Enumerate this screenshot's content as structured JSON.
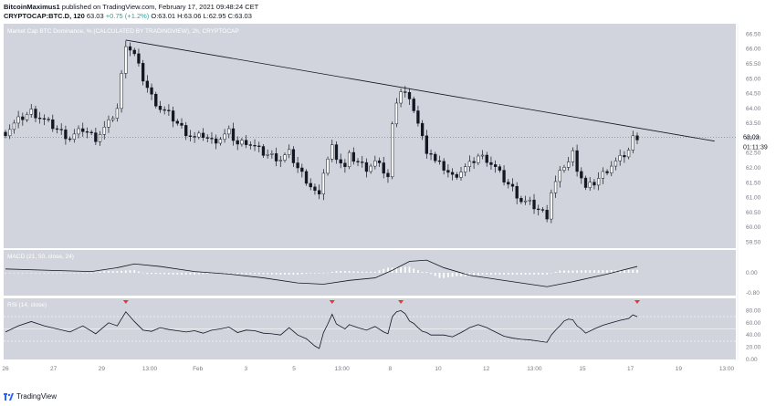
{
  "header": {
    "author": "BitcoinMaximus1",
    "published_text": "published on TradingView.com, February 17, 2021 09:48:24 CET",
    "symbol": "CRYPTOCAP:BTC.D, 120",
    "last": "63.03",
    "change": "+0.75 (+1.2%)",
    "ohlc": "O:63.01 H:63.06 L:62.95 C:63.03"
  },
  "footer": {
    "brand": "TradingView"
  },
  "chart_data": {
    "type": "candlestick",
    "title": "Market Cap BTC Dominance, % (CALCULATED BY TRADINGVIEW), 2h, CRYPTOCAP",
    "price_axis": {
      "range": [
        59.3,
        66.85
      ],
      "ticks": [
        "66.50",
        "66.00",
        "65.50",
        "65.00",
        "64.50",
        "64.00",
        "63.50",
        "63.00",
        "62.50",
        "62.00",
        "61.50",
        "61.00",
        "60.50",
        "60.00",
        "59.50"
      ]
    },
    "last_price": "63.03",
    "countdown": "01:11:39",
    "x_ticks": [
      "26",
      "27",
      "29",
      "13:00",
      "Feb",
      "3",
      "5",
      "13:00",
      "8",
      "10",
      "12",
      "13:00",
      "15",
      "17",
      "19",
      "13:00"
    ],
    "close_path": [
      [
        0,
        63.2
      ],
      [
        3,
        63.6
      ],
      [
        6,
        63.9
      ],
      [
        9,
        63.6
      ],
      [
        12,
        63.3
      ],
      [
        15,
        63.0
      ],
      [
        18,
        63.3
      ],
      [
        21,
        63.0
      ],
      [
        24,
        63.5
      ],
      [
        26,
        64.0
      ],
      [
        28,
        66.2
      ],
      [
        30,
        65.8
      ],
      [
        32,
        65.0
      ],
      [
        34,
        64.4
      ],
      [
        36,
        64.0
      ],
      [
        38,
        63.8
      ],
      [
        40,
        63.5
      ],
      [
        42,
        63.2
      ],
      [
        44,
        63.0
      ],
      [
        46,
        63.1
      ],
      [
        48,
        62.9
      ],
      [
        50,
        63.0
      ],
      [
        52,
        63.2
      ],
      [
        54,
        62.8
      ],
      [
        56,
        62.9
      ],
      [
        58,
        62.7
      ],
      [
        60,
        62.5
      ],
      [
        62,
        62.4
      ],
      [
        64,
        62.3
      ],
      [
        66,
        62.5
      ],
      [
        68,
        62.0
      ],
      [
        70,
        61.6
      ],
      [
        72,
        61.2
      ],
      [
        73,
        61.0
      ],
      [
        74,
        61.9
      ],
      [
        75,
        62.3
      ],
      [
        76,
        62.7
      ],
      [
        77,
        62.4
      ],
      [
        78,
        62.2
      ],
      [
        79,
        62.0
      ],
      [
        80,
        62.4
      ],
      [
        82,
        62.2
      ],
      [
        84,
        62.0
      ],
      [
        86,
        62.2
      ],
      [
        88,
        61.9
      ],
      [
        89,
        61.7
      ],
      [
        90,
        63.4
      ],
      [
        91,
        64.3
      ],
      [
        92,
        64.6
      ],
      [
        93,
        64.5
      ],
      [
        94,
        64.2
      ],
      [
        95,
        64.0
      ],
      [
        96,
        63.5
      ],
      [
        97,
        63.0
      ],
      [
        98,
        62.6
      ],
      [
        99,
        62.5
      ],
      [
        100,
        62.2
      ],
      [
        102,
        62.0
      ],
      [
        104,
        61.7
      ],
      [
        106,
        61.9
      ],
      [
        108,
        62.1
      ],
      [
        110,
        62.4
      ],
      [
        112,
        62.3
      ],
      [
        114,
        62.0
      ],
      [
        116,
        61.6
      ],
      [
        118,
        61.3
      ],
      [
        120,
        60.9
      ],
      [
        122,
        60.8
      ],
      [
        124,
        60.6
      ],
      [
        126,
        60.4
      ],
      [
        127,
        61.2
      ],
      [
        128,
        61.5
      ],
      [
        129,
        61.8
      ],
      [
        130,
        62.1
      ],
      [
        131,
        62.2
      ],
      [
        132,
        62.5
      ],
      [
        133,
        62.0
      ],
      [
        134,
        61.7
      ],
      [
        135,
        61.3
      ],
      [
        137,
        61.5
      ],
      [
        139,
        61.8
      ],
      [
        141,
        62.1
      ],
      [
        143,
        62.3
      ],
      [
        145,
        62.6
      ],
      [
        146,
        63.0
      ],
      [
        147,
        63.06
      ]
    ],
    "trendline": {
      "from": [
        28,
        66.3
      ],
      "to": [
        165,
        62.9
      ]
    },
    "macd": {
      "title": "MACD (21, 50, close, 24)",
      "range": [
        -0.9,
        0.9
      ],
      "ticks": [
        "0.00",
        "-0.80"
      ],
      "macd_line": [
        [
          0,
          0.15
        ],
        [
          10,
          0.1
        ],
        [
          20,
          0.05
        ],
        [
          26,
          0.2
        ],
        [
          30,
          0.35
        ],
        [
          36,
          0.25
        ],
        [
          44,
          0.05
        ],
        [
          52,
          -0.05
        ],
        [
          60,
          -0.2
        ],
        [
          68,
          -0.4
        ],
        [
          74,
          -0.45
        ],
        [
          80,
          -0.3
        ],
        [
          86,
          -0.2
        ],
        [
          90,
          0.1
        ],
        [
          94,
          0.45
        ],
        [
          98,
          0.5
        ],
        [
          102,
          0.2
        ],
        [
          108,
          -0.1
        ],
        [
          116,
          -0.3
        ],
        [
          124,
          -0.5
        ],
        [
          126,
          -0.55
        ],
        [
          132,
          -0.35
        ],
        [
          140,
          -0.05
        ],
        [
          147,
          0.25
        ]
      ]
    },
    "rsi": {
      "title": "RSI (14, close)",
      "range": [
        0,
        100
      ],
      "ticks": [
        "80.00",
        "60.00",
        "40.00",
        "20.00",
        "0.00"
      ],
      "levels": [
        70,
        50,
        30
      ],
      "line": [
        [
          0,
          45
        ],
        [
          3,
          55
        ],
        [
          6,
          62
        ],
        [
          9,
          55
        ],
        [
          12,
          50
        ],
        [
          15,
          45
        ],
        [
          18,
          55
        ],
        [
          21,
          42
        ],
        [
          24,
          60
        ],
        [
          26,
          55
        ],
        [
          28,
          78
        ],
        [
          30,
          62
        ],
        [
          32,
          48
        ],
        [
          34,
          46
        ],
        [
          36,
          52
        ],
        [
          38,
          49
        ],
        [
          40,
          47
        ],
        [
          42,
          45
        ],
        [
          44,
          47
        ],
        [
          46,
          43
        ],
        [
          48,
          48
        ],
        [
          50,
          50
        ],
        [
          52,
          53
        ],
        [
          54,
          44
        ],
        [
          56,
          48
        ],
        [
          58,
          47
        ],
        [
          60,
          43
        ],
        [
          62,
          42
        ],
        [
          64,
          40
        ],
        [
          66,
          52
        ],
        [
          68,
          40
        ],
        [
          70,
          34
        ],
        [
          72,
          22
        ],
        [
          73,
          18
        ],
        [
          74,
          44
        ],
        [
          75,
          58
        ],
        [
          76,
          74
        ],
        [
          77,
          58
        ],
        [
          78,
          54
        ],
        [
          79,
          50
        ],
        [
          80,
          57
        ],
        [
          82,
          52
        ],
        [
          84,
          48
        ],
        [
          86,
          54
        ],
        [
          88,
          45
        ],
        [
          89,
          42
        ],
        [
          90,
          70
        ],
        [
          91,
          78
        ],
        [
          92,
          80
        ],
        [
          93,
          75
        ],
        [
          94,
          63
        ],
        [
          95,
          59
        ],
        [
          96,
          52
        ],
        [
          97,
          46
        ],
        [
          98,
          44
        ],
        [
          99,
          40
        ],
        [
          100,
          40
        ],
        [
          102,
          40
        ],
        [
          104,
          37
        ],
        [
          106,
          44
        ],
        [
          108,
          52
        ],
        [
          110,
          57
        ],
        [
          112,
          52
        ],
        [
          114,
          45
        ],
        [
          116,
          38
        ],
        [
          118,
          35
        ],
        [
          120,
          33
        ],
        [
          122,
          32
        ],
        [
          124,
          30
        ],
        [
          126,
          28
        ],
        [
          127,
          40
        ],
        [
          128,
          48
        ],
        [
          129,
          55
        ],
        [
          130,
          63
        ],
        [
          131,
          66
        ],
        [
          132,
          65
        ],
        [
          133,
          55
        ],
        [
          134,
          50
        ],
        [
          135,
          43
        ],
        [
          137,
          50
        ],
        [
          139,
          56
        ],
        [
          141,
          60
        ],
        [
          143,
          64
        ],
        [
          145,
          67
        ],
        [
          146,
          73
        ],
        [
          147,
          70
        ]
      ],
      "markers": [
        28,
        76,
        92,
        147
      ]
    }
  }
}
